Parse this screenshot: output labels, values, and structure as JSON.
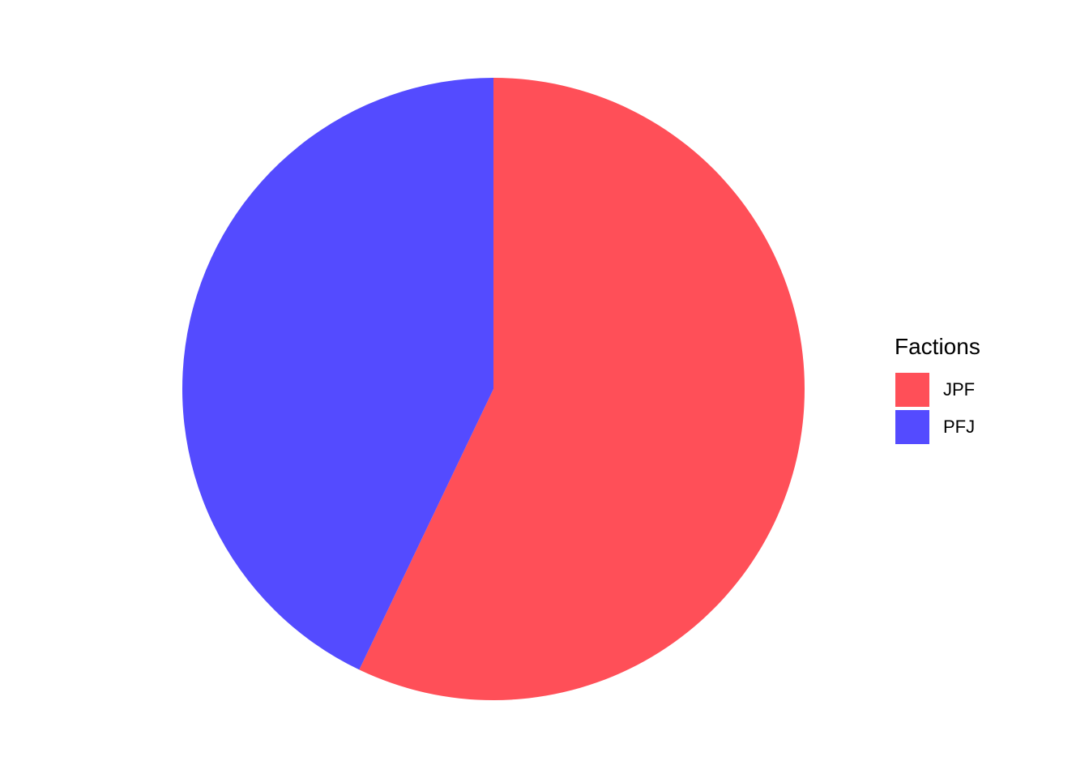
{
  "chart_data": {
    "type": "pie",
    "legend_position": "right",
    "legend_title": "Factions",
    "slices": [
      {
        "label": "JPF",
        "value": 57.1,
        "color": "#FF4F58"
      },
      {
        "label": "PFJ",
        "value": 42.9,
        "color": "#544BFF"
      }
    ],
    "start": "top",
    "direction": "clockwise"
  }
}
